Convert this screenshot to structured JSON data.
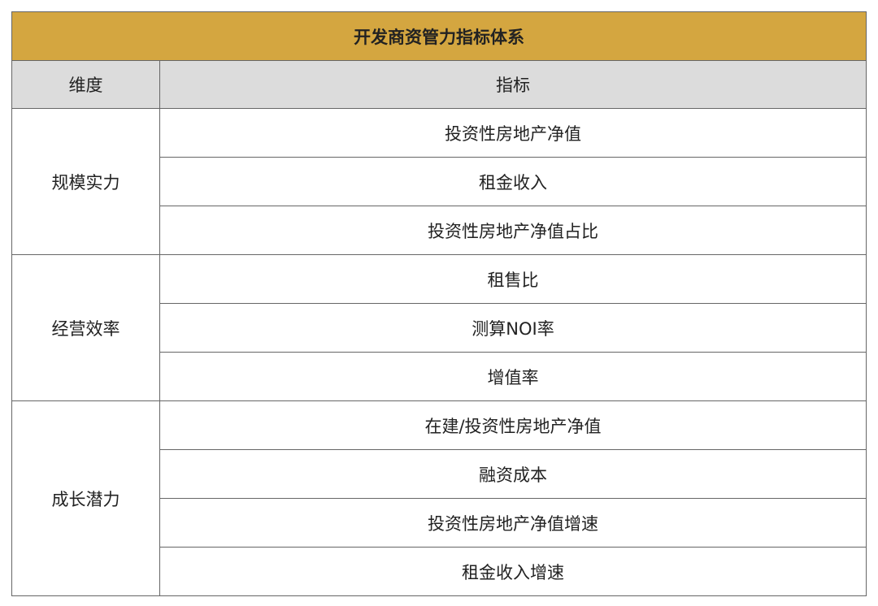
{
  "table": {
    "title": "开发商资管力指标体系",
    "headers": [
      "维度",
      "指标"
    ],
    "groups": [
      {
        "dimension": "规模实力",
        "indicators": [
          "投资性房地产净值",
          "租金收入",
          "投资性房地产净值占比"
        ]
      },
      {
        "dimension": "经营效率",
        "indicators": [
          "租售比",
          "测算NOI率",
          "增值率"
        ]
      },
      {
        "dimension": "成长潜力",
        "indicators": [
          "在建/投资性房地产净值",
          "融资成本",
          "投资性房地产净值增速",
          "租金收入增速"
        ]
      }
    ]
  },
  "colors": {
    "title_bg": "#d4a640",
    "header_bg": "#dcdcdc",
    "border": "#666666"
  }
}
